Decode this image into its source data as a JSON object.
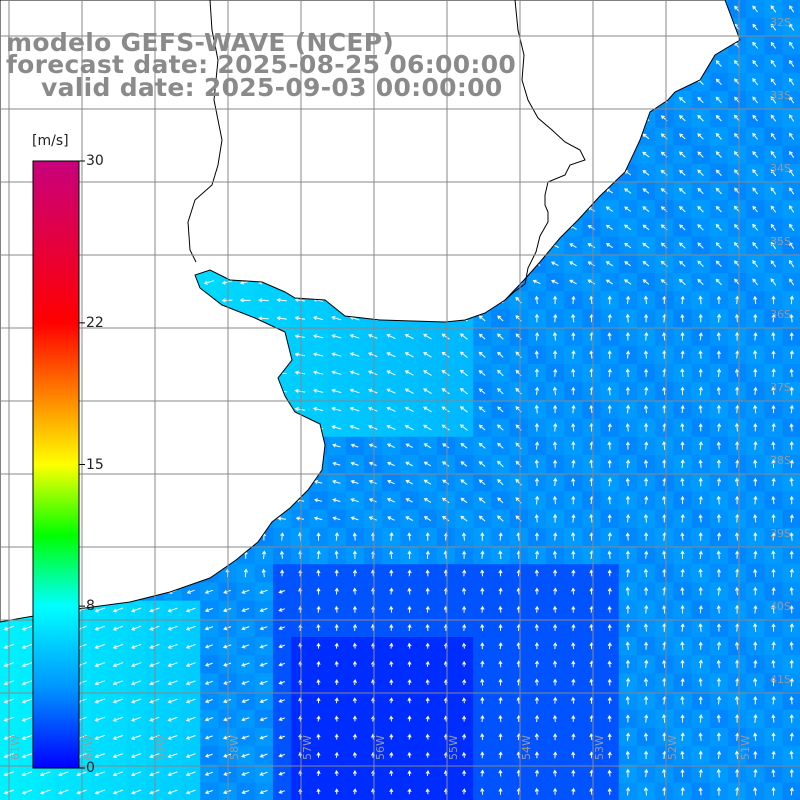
{
  "titles": {
    "model": "modelo GEFS-WAVE (NCEP)",
    "forecast": "forecast date: 2025-08-25 06:00:00",
    "valid": "valid date: 2025-09-03 00:00:00"
  },
  "colorbar": {
    "unit": "[m/s]",
    "min": 0,
    "max": 30,
    "ticks": [
      "30",
      "22",
      "15",
      "8",
      "0"
    ],
    "tick_values": [
      30,
      22,
      15,
      8,
      0
    ],
    "stops": [
      {
        "v": 0,
        "c": "#0000ff"
      },
      {
        "v": 4,
        "c": "#0096ff"
      },
      {
        "v": 8,
        "c": "#00ffff"
      },
      {
        "v": 11.5,
        "c": "#00ff00"
      },
      {
        "v": 15,
        "c": "#ffff00"
      },
      {
        "v": 22,
        "c": "#ff0000"
      },
      {
        "v": 30,
        "c": "#c8007d"
      }
    ]
  },
  "map": {
    "lon_range": [
      -62,
      -51
    ],
    "lat_range": [
      -41,
      -32
    ],
    "lon_labels": [
      "61W",
      "60W",
      "59W",
      "58W",
      "57W",
      "56W",
      "55W",
      "54W",
      "53W",
      "52W",
      "51W"
    ],
    "lat_labels": [
      "32S",
      "33S",
      "34S",
      "35S",
      "36S",
      "37S",
      "38S",
      "39S",
      "40S",
      "41S"
    ],
    "land_color": "#ffffff",
    "grid_color": "#888888",
    "arrow_color": "#ffffff"
  }
}
